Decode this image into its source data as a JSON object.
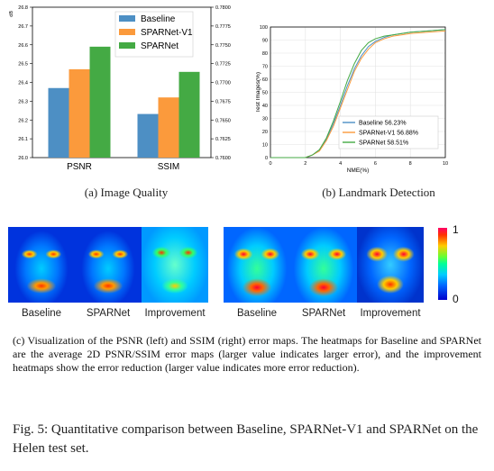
{
  "chart_data": [
    {
      "type": "bar",
      "categories": [
        "PSNR",
        "SSIM"
      ],
      "series": [
        {
          "name": "Baseline",
          "color": "#4d8fc4",
          "values": [
            26.37,
            0.7658
          ]
        },
        {
          "name": "SPARNet-V1",
          "color": "#fb9a3c",
          "values": [
            26.47,
            0.768
          ]
        },
        {
          "name": "SPARNet",
          "color": "#44aa44",
          "values": [
            26.59,
            0.7714
          ]
        }
      ],
      "left_axis": {
        "label": "dB",
        "ylim": [
          26.0,
          26.8
        ],
        "ticks": [
          "26.0",
          "26.1",
          "26.2",
          "26.3",
          "26.4",
          "26.5",
          "26.6",
          "26.7",
          "26.8"
        ]
      },
      "right_axis": {
        "ylim": [
          0.76,
          0.78
        ],
        "ticks": [
          "0.7600",
          "0.7625",
          "0.7650",
          "0.7675",
          "0.7700",
          "0.7725",
          "0.7750",
          "0.7775",
          "0.7800"
        ]
      },
      "legend_position": "top-right",
      "grid": false
    },
    {
      "type": "line",
      "xlabel": "NME(%)",
      "ylabel": "Test Images(%)",
      "xlim": [
        0,
        10
      ],
      "ylim": [
        0,
        100
      ],
      "xticks": [
        "0",
        "2",
        "4",
        "6",
        "8",
        "10"
      ],
      "yticks": [
        "0",
        "10",
        "20",
        "30",
        "40",
        "50",
        "60",
        "70",
        "80",
        "90",
        "100"
      ],
      "legend_position": "bottom-right",
      "grid": true,
      "series": [
        {
          "name": "Baseline 56.23%",
          "color": "#4d8fc4",
          "x": [
            0,
            2,
            2.4,
            2.8,
            3.2,
            3.6,
            4,
            4.4,
            4.8,
            5.2,
            5.6,
            6,
            6.5,
            7,
            7.5,
            8,
            9,
            10
          ],
          "y": [
            0,
            0,
            2,
            6,
            14,
            26,
            40,
            55,
            68,
            78,
            85,
            89,
            92,
            94,
            95,
            96,
            97,
            98
          ]
        },
        {
          "name": "SPARNet-V1 56.88%",
          "color": "#fb9a3c",
          "x": [
            0,
            2,
            2.4,
            2.8,
            3.2,
            3.6,
            4,
            4.4,
            4.8,
            5.2,
            5.6,
            6,
            6.5,
            7,
            7.5,
            8,
            9,
            10
          ],
          "y": [
            0,
            0,
            2,
            5,
            13,
            24,
            38,
            52,
            66,
            76,
            83,
            88,
            91,
            93,
            94,
            95,
            96,
            97
          ]
        },
        {
          "name": "SPARNet 58.51%",
          "color": "#44aa44",
          "x": [
            0,
            2,
            2.4,
            2.8,
            3.2,
            3.6,
            4,
            4.4,
            4.8,
            5.2,
            5.6,
            6,
            6.5,
            7,
            7.5,
            8,
            9,
            10
          ],
          "y": [
            0,
            0,
            2,
            6,
            15,
            28,
            43,
            59,
            72,
            82,
            88,
            91,
            93,
            94,
            95,
            96,
            97,
            98
          ]
        }
      ]
    }
  ],
  "captions": {
    "a": "(a) Image Quality",
    "b": "(b) Landmark Detection",
    "c": "(c) Visualization of the PSNR (left) and SSIM (right) error maps. The heatmaps for Baseline and SPARNet are the average 2D PSNR/SSIM error maps (larger value indicates larger error), and the improvement heatmaps show the error reduction (larger value indicates more error reduction).",
    "figure": "Fig. 5: Quantitative comparison between Baseline, SPARNet-V1 and SPARNet on the Helen test set."
  },
  "heatmaps": {
    "labels": [
      "Baseline",
      "SPARNet",
      "Improvement",
      "Baseline",
      "SPARNet",
      "Improvement"
    ],
    "colorbar": {
      "max_label": "1",
      "min_label": "0"
    }
  }
}
